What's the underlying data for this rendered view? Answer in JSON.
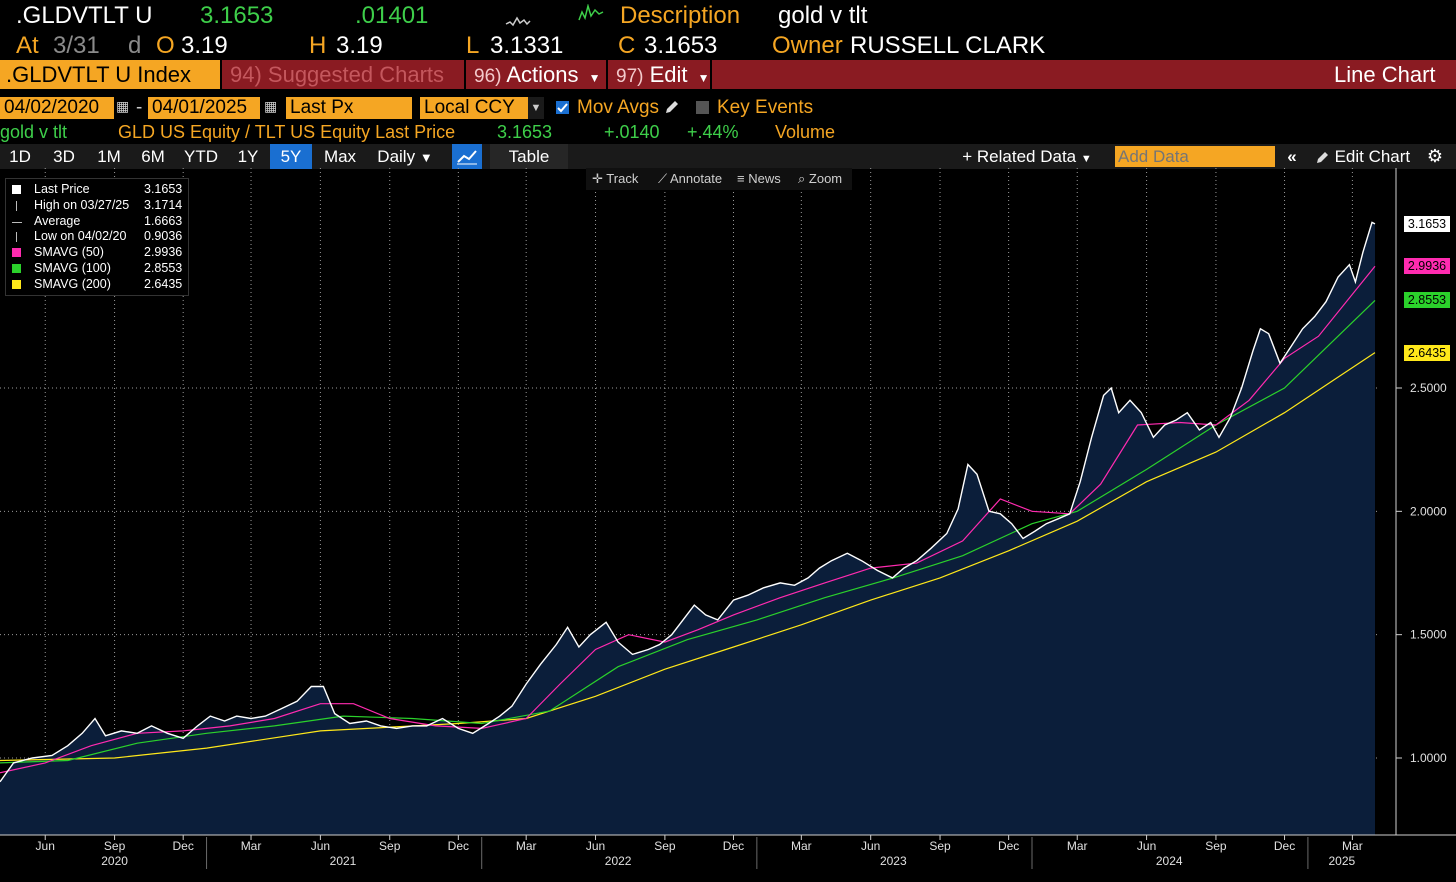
{
  "header": {
    "ticker": ".GLDVTLT U",
    "last": "3.1653",
    "change": ".01401",
    "description_label": "Description",
    "description_value": "gold v tlt",
    "at_label": "At",
    "at_value": "3/31",
    "d_label": "d",
    "open_label": "O",
    "open_value": "3.19",
    "high_label": "H",
    "high_value": "3.19",
    "low_label": "L",
    "low_value": "3.1331",
    "close_label": "C",
    "close_value": "3.1653",
    "owner_label": "Owner",
    "owner_value": "RUSSELL CLARK"
  },
  "menu": {
    "index_label": ".GLDVTLT U Index",
    "suggested": "94) Suggested Charts",
    "actions_num": "96)",
    "actions": "Actions",
    "edit_num": "97)",
    "edit": "Edit",
    "chart_type": "Line Chart"
  },
  "controls": {
    "start_date": "04/02/2020",
    "end_date": "04/01/2025",
    "field": "Last Px",
    "currency": "Local CCY",
    "mov_avgs": "Mov Avgs",
    "key_events": "Key Events"
  },
  "security_line": {
    "name": "gold v tlt",
    "desc": "GLD US Equity / TLT US Equity Last Price",
    "price": "3.1653",
    "change": "+.0140",
    "pct": "+.44%",
    "volume": "Volume"
  },
  "periods": [
    "1D",
    "3D",
    "1M",
    "6M",
    "YTD",
    "1Y",
    "5Y",
    "Max"
  ],
  "active_period": "5Y",
  "frequency": "Daily",
  "table_label": "Table",
  "related_data": "Related Data",
  "add_data_placeholder": "Add Data",
  "edit_chart": "Edit Chart",
  "tools": {
    "track": "Track",
    "annotate": "Annotate",
    "news": "News",
    "zoom": "Zoom"
  },
  "legend": [
    {
      "label": "Last Price",
      "value": "3.1653",
      "color": "#ffffff",
      "marker": "square"
    },
    {
      "label": "High on 03/27/25",
      "value": "3.1714",
      "color": "#bbbbbb",
      "marker": "high"
    },
    {
      "label": "Average",
      "value": "1.6663",
      "color": "#bbbbbb",
      "marker": "avg"
    },
    {
      "label": "Low on 04/02/20",
      "value": "0.9036",
      "color": "#bbbbbb",
      "marker": "low"
    },
    {
      "label": "SMAVG (50)",
      "value": "2.9936",
      "color": "#ff2bb0",
      "marker": "square"
    },
    {
      "label": "SMAVG (100)",
      "value": "2.8553",
      "color": "#2bd12b",
      "marker": "square"
    },
    {
      "label": "SMAVG (200)",
      "value": "2.6435",
      "color": "#ffe81a",
      "marker": "square"
    }
  ],
  "y_tags": [
    {
      "value": "3.1653",
      "bg": "#ffffff",
      "fg": "#000000"
    },
    {
      "value": "2.9936",
      "bg": "#ff2bb0",
      "fg": "#000000"
    },
    {
      "value": "2.8553",
      "bg": "#2bd12b",
      "fg": "#000000"
    },
    {
      "value": "2.6435",
      "bg": "#ffe81a",
      "fg": "#000000"
    }
  ],
  "chart_data": {
    "type": "line",
    "ylim": [
      0.75,
      3.3
    ],
    "yticks": [
      "1.0000",
      "1.5000",
      "2.0000",
      "2.5000"
    ],
    "x_months": [
      "Jun",
      "Sep",
      "Dec",
      "Mar",
      "Jun",
      "Sep",
      "Dec",
      "Mar",
      "Jun",
      "Sep",
      "Dec",
      "Mar",
      "Jun",
      "Sep",
      "Dec",
      "Mar",
      "Jun",
      "Sep",
      "Dec",
      "Mar"
    ],
    "x_years": [
      "2020",
      "2021",
      "2022",
      "2023",
      "2024",
      "2025"
    ],
    "colors": {
      "price": "#ffffff",
      "sma50": "#ff2bb0",
      "sma100": "#2bd12b",
      "sma200": "#ffe81a",
      "area": "#0b1e3a"
    },
    "series": [
      {
        "name": "Last Price",
        "points": [
          [
            "2020-04-02",
            0.9036
          ],
          [
            "2020-04-20",
            0.98
          ],
          [
            "2020-05-15",
            1.0
          ],
          [
            "2020-06-10",
            1.01
          ],
          [
            "2020-07-01",
            1.05
          ],
          [
            "2020-07-20",
            1.1
          ],
          [
            "2020-08-06",
            1.16
          ],
          [
            "2020-08-20",
            1.09
          ],
          [
            "2020-09-10",
            1.11
          ],
          [
            "2020-10-01",
            1.1
          ],
          [
            "2020-10-20",
            1.13
          ],
          [
            "2020-11-10",
            1.1
          ],
          [
            "2020-12-01",
            1.08
          ],
          [
            "2020-12-20",
            1.13
          ],
          [
            "2021-01-06",
            1.17
          ],
          [
            "2021-01-25",
            1.15
          ],
          [
            "2021-02-10",
            1.17
          ],
          [
            "2021-03-01",
            1.16
          ],
          [
            "2021-03-20",
            1.17
          ],
          [
            "2021-04-10",
            1.2
          ],
          [
            "2021-05-01",
            1.23
          ],
          [
            "2021-05-20",
            1.29
          ],
          [
            "2021-06-05",
            1.29
          ],
          [
            "2021-06-20",
            1.18
          ],
          [
            "2021-07-10",
            1.14
          ],
          [
            "2021-08-01",
            1.15
          ],
          [
            "2021-08-20",
            1.13
          ],
          [
            "2021-09-10",
            1.12
          ],
          [
            "2021-10-01",
            1.13
          ],
          [
            "2021-10-20",
            1.13
          ],
          [
            "2021-11-10",
            1.16
          ],
          [
            "2021-12-01",
            1.12
          ],
          [
            "2021-12-20",
            1.1
          ],
          [
            "2022-01-10",
            1.14
          ],
          [
            "2022-01-25",
            1.17
          ],
          [
            "2022-02-10",
            1.21
          ],
          [
            "2022-03-01",
            1.3
          ],
          [
            "2022-03-20",
            1.38
          ],
          [
            "2022-04-10",
            1.46
          ],
          [
            "2022-04-25",
            1.53
          ],
          [
            "2022-05-10",
            1.45
          ],
          [
            "2022-05-25",
            1.5
          ],
          [
            "2022-06-15",
            1.55
          ],
          [
            "2022-07-01",
            1.47
          ],
          [
            "2022-07-20",
            1.42
          ],
          [
            "2022-08-10",
            1.44
          ],
          [
            "2022-08-25",
            1.46
          ],
          [
            "2022-09-10",
            1.5
          ],
          [
            "2022-09-25",
            1.56
          ],
          [
            "2022-10-10",
            1.62
          ],
          [
            "2022-10-25",
            1.58
          ],
          [
            "2022-11-10",
            1.56
          ],
          [
            "2022-12-01",
            1.64
          ],
          [
            "2022-12-20",
            1.66
          ],
          [
            "2023-01-10",
            1.69
          ],
          [
            "2023-02-01",
            1.71
          ],
          [
            "2023-02-20",
            1.7
          ],
          [
            "2023-03-10",
            1.73
          ],
          [
            "2023-03-25",
            1.77
          ],
          [
            "2023-04-10",
            1.8
          ],
          [
            "2023-05-01",
            1.83
          ],
          [
            "2023-05-20",
            1.8
          ],
          [
            "2023-06-10",
            1.76
          ],
          [
            "2023-06-30",
            1.73
          ],
          [
            "2023-07-15",
            1.77
          ],
          [
            "2023-08-01",
            1.8
          ],
          [
            "2023-08-20",
            1.85
          ],
          [
            "2023-09-10",
            1.91
          ],
          [
            "2023-09-25",
            2.01
          ],
          [
            "2023-10-08",
            2.19
          ],
          [
            "2023-10-20",
            2.15
          ],
          [
            "2023-11-05",
            2.0
          ],
          [
            "2023-11-20",
            1.99
          ],
          [
            "2023-12-05",
            1.95
          ],
          [
            "2023-12-20",
            1.89
          ],
          [
            "2024-01-05",
            1.92
          ],
          [
            "2024-01-20",
            1.95
          ],
          [
            "2024-02-05",
            1.97
          ],
          [
            "2024-02-20",
            1.99
          ],
          [
            "2024-03-05",
            2.12
          ],
          [
            "2024-03-20",
            2.3
          ],
          [
            "2024-04-05",
            2.47
          ],
          [
            "2024-04-15",
            2.5
          ],
          [
            "2024-04-25",
            2.4
          ],
          [
            "2024-05-10",
            2.45
          ],
          [
            "2024-05-25",
            2.4
          ],
          [
            "2024-06-10",
            2.3
          ],
          [
            "2024-06-25",
            2.35
          ],
          [
            "2024-07-10",
            2.37
          ],
          [
            "2024-07-25",
            2.4
          ],
          [
            "2024-08-10",
            2.33
          ],
          [
            "2024-08-25",
            2.36
          ],
          [
            "2024-09-05",
            2.3
          ],
          [
            "2024-09-20",
            2.38
          ],
          [
            "2024-10-05",
            2.5
          ],
          [
            "2024-10-20",
            2.65
          ],
          [
            "2024-10-30",
            2.74
          ],
          [
            "2024-11-10",
            2.72
          ],
          [
            "2024-11-25",
            2.6
          ],
          [
            "2024-12-10",
            2.67
          ],
          [
            "2024-12-25",
            2.74
          ],
          [
            "2025-01-10",
            2.79
          ],
          [
            "2025-01-25",
            2.85
          ],
          [
            "2025-02-10",
            2.95
          ],
          [
            "2025-02-25",
            3.0
          ],
          [
            "2025-03-05",
            2.93
          ],
          [
            "2025-03-15",
            3.05
          ],
          [
            "2025-03-27",
            3.1714
          ],
          [
            "2025-03-31",
            3.1653
          ]
        ]
      },
      {
        "name": "SMAVG (50)",
        "points": [
          [
            "2020-04-02",
            0.94
          ],
          [
            "2020-06-01",
            0.98
          ],
          [
            "2020-08-01",
            1.05
          ],
          [
            "2020-10-01",
            1.1
          ],
          [
            "2020-12-01",
            1.11
          ],
          [
            "2021-02-01",
            1.13
          ],
          [
            "2021-04-01",
            1.16
          ],
          [
            "2021-06-01",
            1.22
          ],
          [
            "2021-07-15",
            1.22
          ],
          [
            "2021-09-01",
            1.16
          ],
          [
            "2021-11-01",
            1.13
          ],
          [
            "2022-01-01",
            1.12
          ],
          [
            "2022-03-01",
            1.16
          ],
          [
            "2022-04-15",
            1.3
          ],
          [
            "2022-06-01",
            1.44
          ],
          [
            "2022-07-15",
            1.5
          ],
          [
            "2022-09-01",
            1.47
          ],
          [
            "2022-10-15",
            1.52
          ],
          [
            "2022-12-01",
            1.58
          ],
          [
            "2023-02-01",
            1.65
          ],
          [
            "2023-04-01",
            1.71
          ],
          [
            "2023-06-01",
            1.77
          ],
          [
            "2023-08-01",
            1.79
          ],
          [
            "2023-10-01",
            1.88
          ],
          [
            "2023-11-20",
            2.05
          ],
          [
            "2024-01-01",
            2.0
          ],
          [
            "2024-02-20",
            1.99
          ],
          [
            "2024-04-01",
            2.11
          ],
          [
            "2024-05-20",
            2.35
          ],
          [
            "2024-07-15",
            2.36
          ],
          [
            "2024-09-01",
            2.35
          ],
          [
            "2024-10-15",
            2.45
          ],
          [
            "2024-12-01",
            2.62
          ],
          [
            "2025-01-15",
            2.71
          ],
          [
            "2025-03-31",
            2.9936
          ]
        ]
      },
      {
        "name": "SMAVG (100)",
        "points": [
          [
            "2020-04-02",
            0.98
          ],
          [
            "2020-07-01",
            0.99
          ],
          [
            "2020-10-01",
            1.06
          ],
          [
            "2021-01-01",
            1.1
          ],
          [
            "2021-04-01",
            1.13
          ],
          [
            "2021-07-01",
            1.17
          ],
          [
            "2021-10-01",
            1.16
          ],
          [
            "2022-01-01",
            1.14
          ],
          [
            "2022-04-01",
            1.19
          ],
          [
            "2022-07-01",
            1.37
          ],
          [
            "2022-10-01",
            1.48
          ],
          [
            "2023-01-01",
            1.56
          ],
          [
            "2023-04-01",
            1.65
          ],
          [
            "2023-07-01",
            1.73
          ],
          [
            "2023-10-01",
            1.82
          ],
          [
            "2024-01-01",
            1.95
          ],
          [
            "2024-03-01",
            2.0
          ],
          [
            "2024-06-01",
            2.17
          ],
          [
            "2024-09-01",
            2.35
          ],
          [
            "2024-12-01",
            2.5
          ],
          [
            "2025-03-31",
            2.8553
          ]
        ]
      },
      {
        "name": "SMAVG (200)",
        "points": [
          [
            "2020-04-02",
            0.99
          ],
          [
            "2020-09-01",
            1.0
          ],
          [
            "2021-01-01",
            1.04
          ],
          [
            "2021-06-01",
            1.11
          ],
          [
            "2021-12-01",
            1.14
          ],
          [
            "2022-03-01",
            1.16
          ],
          [
            "2022-06-01",
            1.25
          ],
          [
            "2022-09-01",
            1.36
          ],
          [
            "2022-12-01",
            1.45
          ],
          [
            "2023-03-01",
            1.54
          ],
          [
            "2023-06-01",
            1.64
          ],
          [
            "2023-09-01",
            1.73
          ],
          [
            "2023-12-01",
            1.84
          ],
          [
            "2024-03-01",
            1.96
          ],
          [
            "2024-06-01",
            2.12
          ],
          [
            "2024-09-01",
            2.24
          ],
          [
            "2024-12-01",
            2.4
          ],
          [
            "2025-03-31",
            2.6435
          ]
        ]
      }
    ]
  }
}
